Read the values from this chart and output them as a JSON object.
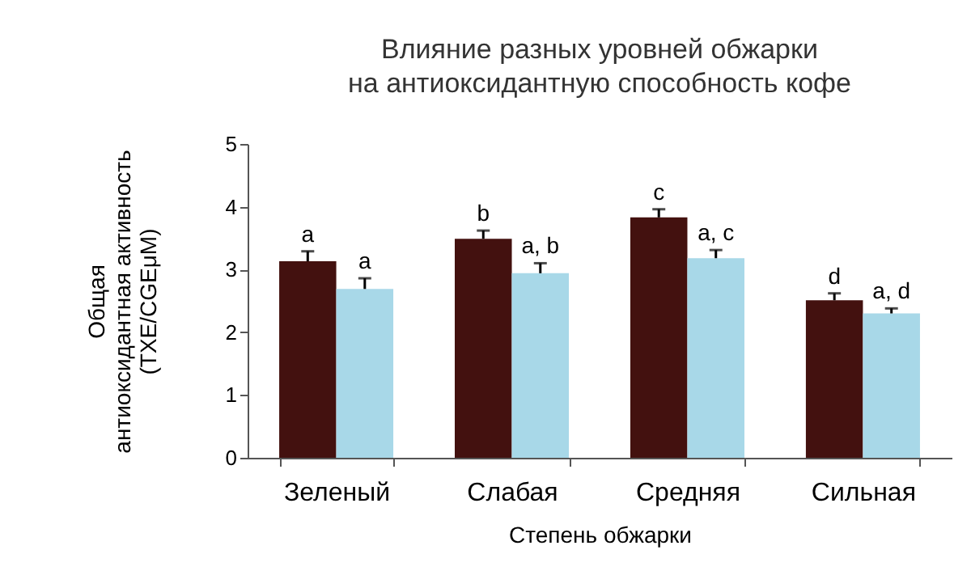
{
  "chart_data": {
    "type": "bar",
    "title": "Влияние разных уровней обжарки\nна антиоксидантную способность кофе",
    "xlabel": "Степень обжарки",
    "ylabel": "Общая\nантиоксидантная активность\n(TXE/CGEμM)",
    "categories": [
      "Зеленый",
      "Слабая",
      "Средняя",
      "Сильная"
    ],
    "series": [
      {
        "color": "#43110f",
        "values": [
          3.13,
          3.49,
          3.83,
          2.51
        ],
        "errors": [
          [
            3.13,
            3.29
          ],
          [
            3.49,
            3.62
          ],
          [
            3.83,
            3.96
          ],
          [
            2.51,
            2.62
          ]
        ]
      },
      {
        "color": "#a8d8e8",
        "values": [
          2.69,
          2.94,
          3.18,
          2.3
        ],
        "errors": [
          [
            2.69,
            2.86
          ],
          [
            2.94,
            3.1
          ],
          [
            3.18,
            3.31
          ],
          [
            2.3,
            2.38
          ]
        ]
      }
    ],
    "ylim": [
      0,
      5
    ],
    "yticks": [
      0,
      1,
      2,
      3,
      4,
      5
    ],
    "grid": false,
    "legend": false,
    "annotations": [
      {
        "text": "a",
        "x": "Зеленый",
        "y": 3.13
      },
      {
        "text": "a",
        "x": "Зеленый",
        "y": 2.69
      },
      {
        "text": "b",
        "x": "Слабая",
        "y": 3.49
      },
      {
        "text": "a, b",
        "x": "Слабая",
        "y": 2.94
      },
      {
        "text": "c",
        "x": "Средняя",
        "y": 3.83
      },
      {
        "text": "a, c",
        "x": "Средняя",
        "y": 3.18
      },
      {
        "text": "d",
        "x": "Сильная",
        "y": 2.51
      },
      {
        "text": "a, d",
        "x": "Сильная",
        "y": 2.3
      }
    ]
  }
}
